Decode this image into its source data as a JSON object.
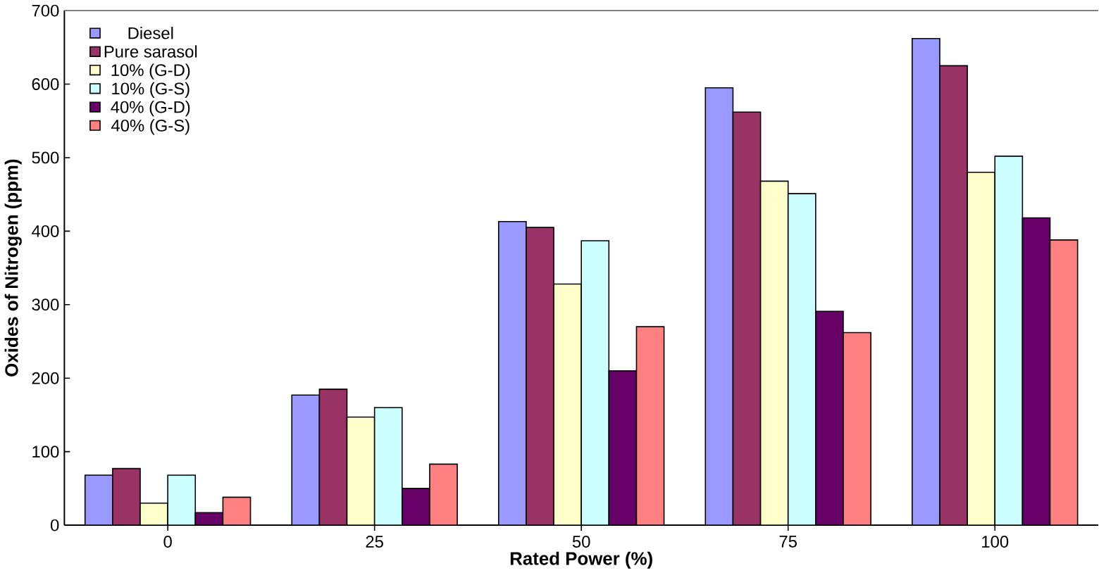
{
  "chart_data": {
    "type": "bar",
    "xlabel": "Rated Power (%)",
    "ylabel": "Oxides of Nitrogen (ppm)",
    "categories": [
      "0",
      "25",
      "50",
      "75",
      "100"
    ],
    "series": [
      {
        "name": "Diesel",
        "color": "#9999ff",
        "values": [
          68,
          177,
          413,
          595,
          662
        ]
      },
      {
        "name": "Pure sarasol",
        "color": "#993366",
        "values": [
          77,
          185,
          405,
          562,
          625
        ]
      },
      {
        "name": "10% (G-D)",
        "color": "#ffffcc",
        "values": [
          30,
          147,
          328,
          468,
          480
        ]
      },
      {
        "name": "10% (G-S)",
        "color": "#ccffff",
        "values": [
          68,
          160,
          387,
          451,
          502
        ]
      },
      {
        "name": "40% (G-D)",
        "color": "#660066",
        "values": [
          17,
          50,
          210,
          291,
          418
        ]
      },
      {
        "name": "40% (G-S)",
        "color": "#ff8080",
        "values": [
          38,
          83,
          270,
          262,
          388
        ]
      }
    ],
    "ylim": [
      0,
      700
    ],
    "yticks": [
      0,
      100,
      200,
      300,
      400,
      500,
      600,
      700
    ],
    "legend": "top left",
    "grid": false
  }
}
